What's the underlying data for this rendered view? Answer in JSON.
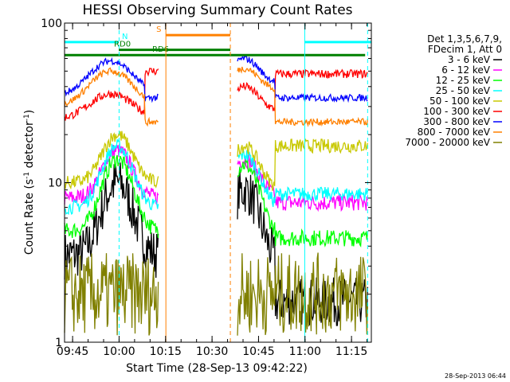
{
  "chart_data": {
    "type": "line",
    "title": "HESSI Observing Summary Count Rates",
    "xlabel": "Start Time (28-Sep-13 09:42:22)",
    "ylabel_main": "Count Rate (s",
    "ylabel_exp1": "-1",
    "ylabel_mid": " detector",
    "ylabel_exp2": "-1",
    "ylabel_end": ")",
    "yscale": "log",
    "ylim": [
      1,
      100
    ],
    "xlim_minutes": [
      0,
      99
    ],
    "x_ticks": [
      {
        "label": "09:45",
        "min": 2.6
      },
      {
        "label": "10:00",
        "min": 17.6
      },
      {
        "label": "10:15",
        "min": 32.6
      },
      {
        "label": "10:30",
        "min": 47.6
      },
      {
        "label": "10:45",
        "min": 62.6
      },
      {
        "label": "11:00",
        "min": 77.6
      },
      {
        "label": "11:15",
        "min": 92.6
      }
    ],
    "y_ticks": [
      {
        "label": "100",
        "value": 100
      },
      {
        "label": "10",
        "value": 10
      },
      {
        "label": "1",
        "value": 1
      }
    ],
    "legend_header": [
      "Det 1,3,5,6,7,9,",
      "FDecim 1, Att 0"
    ],
    "series": [
      {
        "name": "3 - 6 keV",
        "color": "#000000",
        "legend_color": "#000000"
      },
      {
        "name": "6 - 12 keV",
        "color": "#ff00ff",
        "legend_color": "#ff00ff"
      },
      {
        "name": "12 - 25 keV",
        "color": "#00ff00",
        "legend_color": "#00ff00"
      },
      {
        "name": "25 - 50 keV",
        "color": "#00ffff",
        "legend_color": "#00ffff"
      },
      {
        "name": "50 - 100 keV",
        "color": "#c8c800",
        "legend_color": "#c8c800"
      },
      {
        "name": "100 - 300 keV",
        "color": "#ff0000",
        "legend_color": "#ff0000"
      },
      {
        "name": "300 - 800 keV",
        "color": "#0000ff",
        "legend_color": "#0000ff"
      },
      {
        "name": "800 - 7000 keV",
        "color": "#ff8000",
        "legend_color": "#ff8000"
      },
      {
        "name": "7000 - 20000 keV",
        "color": "#808000",
        "legend_color": "#808000"
      }
    ],
    "flag_bars": [
      {
        "label": "N",
        "color": "#00ffff",
        "value": 76,
        "segments": [
          [
            0,
            17.5
          ],
          [
            77.5,
            99
          ]
        ]
      },
      {
        "label": "RD0",
        "color": "#008000",
        "value": 68,
        "segments": [
          [
            17.5,
            53.5
          ]
        ]
      },
      {
        "label": "RD6",
        "color": "#008000",
        "value": 63,
        "segments": [
          [
            0,
            97
          ]
        ]
      },
      {
        "label": "S",
        "color": "#ff8000",
        "value": 84,
        "segments": [
          [
            32.7,
            53.5
          ]
        ]
      }
    ],
    "vlines": [
      {
        "min": 0,
        "color": "#00ffff",
        "style": "solid"
      },
      {
        "min": 17.6,
        "color": "#00ffff",
        "style": "dashed"
      },
      {
        "min": 32.7,
        "color": "#ff8000",
        "style": "solid"
      },
      {
        "min": 53.5,
        "color": "#ff8000",
        "style": "dashed"
      },
      {
        "min": 77.5,
        "color": "#00ffff",
        "style": "solid"
      },
      {
        "min": 97.8,
        "color": "#00ffff",
        "style": "dashed"
      }
    ],
    "segments_minutes": [
      [
        0,
        30.4
      ],
      [
        55.8,
        98
      ]
    ],
    "grid": false,
    "legend_position": "right"
  },
  "footer_stamp": "28-Sep-2013 06:44"
}
